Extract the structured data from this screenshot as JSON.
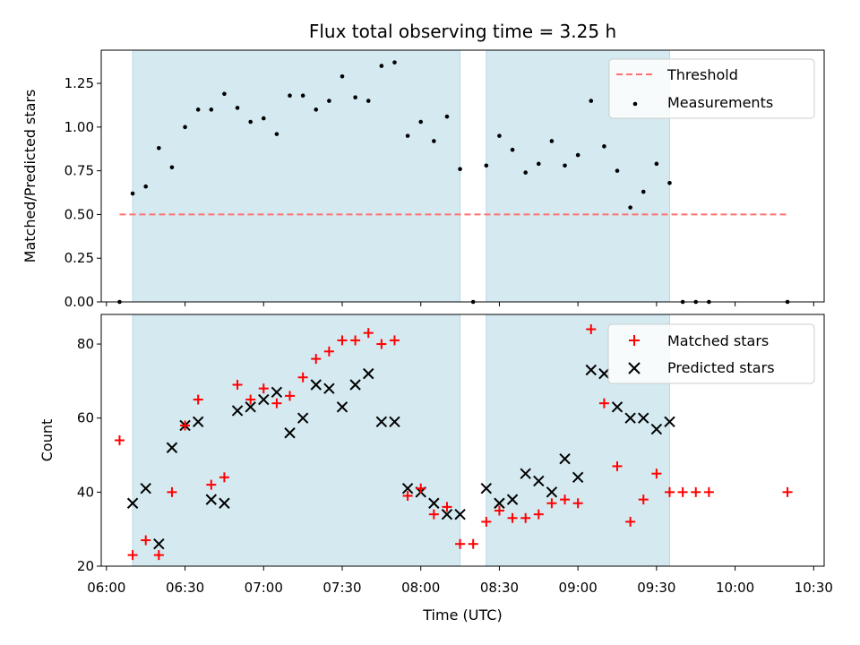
{
  "chart_data": [
    {
      "type": "scatter",
      "title": "Flux total observing time = 3.25 h",
      "xlabel": "",
      "ylabel": "Matched/Predicted stars",
      "ylim": [
        0,
        1.44
      ],
      "yticks": [
        0.0,
        0.25,
        0.5,
        0.75,
        1.0,
        1.25
      ],
      "ytick_labels": [
        "0.00",
        "0.25",
        "0.50",
        "0.75",
        "1.00",
        "1.25"
      ],
      "legend_position": "top-right",
      "shaded_spans": [
        [
          "06:10",
          "08:15"
        ],
        [
          "08:25",
          "09:35"
        ]
      ],
      "threshold": {
        "name": "Threshold",
        "y": 0.5,
        "x_range": [
          "06:05",
          "10:20"
        ],
        "color": "#ff7070"
      },
      "series": [
        {
          "name": "Measurements",
          "color": "#000000",
          "x": [
            "06:05",
            "06:10",
            "06:15",
            "06:20",
            "06:25",
            "06:30",
            "06:35",
            "06:40",
            "06:45",
            "06:50",
            "06:55",
            "07:00",
            "07:05",
            "07:10",
            "07:15",
            "07:20",
            "07:25",
            "07:30",
            "07:35",
            "07:40",
            "07:45",
            "07:50",
            "07:55",
            "08:00",
            "08:05",
            "08:10",
            "08:15",
            "08:20",
            "08:25",
            "08:30",
            "08:35",
            "08:40",
            "08:45",
            "08:50",
            "08:55",
            "09:00",
            "09:05",
            "09:10",
            "09:15",
            "09:20",
            "09:25",
            "09:30",
            "09:35",
            "09:40",
            "09:45",
            "09:50",
            "10:20"
          ],
          "y": [
            0.0,
            0.62,
            0.66,
            0.88,
            0.77,
            1.0,
            1.1,
            1.1,
            1.19,
            1.11,
            1.03,
            1.05,
            0.96,
            1.18,
            1.18,
            1.1,
            1.15,
            1.29,
            1.17,
            1.15,
            1.35,
            1.37,
            0.95,
            1.03,
            0.92,
            1.06,
            0.76,
            0.0,
            0.78,
            0.95,
            0.87,
            0.74,
            0.79,
            0.92,
            0.78,
            0.84,
            1.15,
            0.89,
            0.75,
            0.54,
            0.63,
            0.79,
            0.68,
            0.0,
            0.0,
            0.0,
            0.0
          ]
        }
      ]
    },
    {
      "type": "scatter",
      "xlabel": "Time (UTC)",
      "ylabel": "Count",
      "ylim": [
        20,
        88
      ],
      "yticks": [
        20,
        40,
        60,
        80
      ],
      "ytick_labels": [
        "20",
        "40",
        "60",
        "80"
      ],
      "xticks": [
        "06:00",
        "06:30",
        "07:00",
        "07:30",
        "08:00",
        "08:30",
        "09:00",
        "09:30",
        "10:00",
        "10:30"
      ],
      "xlim": [
        "05:58",
        "10:34"
      ],
      "legend_position": "top-right",
      "shaded_spans": [
        [
          "06:10",
          "08:15"
        ],
        [
          "08:25",
          "09:35"
        ]
      ],
      "series": [
        {
          "name": "Matched stars",
          "marker": "plus",
          "color": "#ff0000",
          "x": [
            "06:05",
            "06:10",
            "06:15",
            "06:20",
            "06:25",
            "06:30",
            "06:35",
            "06:40",
            "06:45",
            "06:50",
            "06:55",
            "07:00",
            "07:05",
            "07:10",
            "07:15",
            "07:20",
            "07:25",
            "07:30",
            "07:35",
            "07:40",
            "07:45",
            "07:50",
            "07:55",
            "08:00",
            "08:05",
            "08:10",
            "08:15",
            "08:20",
            "08:25",
            "08:30",
            "08:35",
            "08:40",
            "08:45",
            "08:50",
            "08:55",
            "09:00",
            "09:05",
            "09:10",
            "09:15",
            "09:20",
            "09:25",
            "09:30",
            "09:35",
            "09:40",
            "09:45",
            "09:50",
            "10:20"
          ],
          "y": [
            54,
            23,
            27,
            23,
            40,
            58,
            65,
            42,
            44,
            69,
            65,
            68,
            64,
            66,
            71,
            76,
            78,
            81,
            81,
            83,
            80,
            81,
            39,
            41,
            34,
            36,
            26,
            26,
            32,
            35,
            33,
            33,
            34,
            37,
            38,
            37,
            84,
            64,
            47,
            32,
            38,
            45,
            40,
            40,
            40,
            40,
            40
          ]
        },
        {
          "name": "Predicted stars",
          "marker": "x",
          "color": "#000000",
          "x": [
            "06:10",
            "06:15",
            "06:20",
            "06:25",
            "06:30",
            "06:35",
            "06:40",
            "06:45",
            "06:50",
            "06:55",
            "07:00",
            "07:05",
            "07:10",
            "07:15",
            "07:20",
            "07:25",
            "07:30",
            "07:35",
            "07:40",
            "07:45",
            "07:50",
            "07:55",
            "08:00",
            "08:05",
            "08:10",
            "08:15",
            "08:25",
            "08:30",
            "08:35",
            "08:40",
            "08:45",
            "08:50",
            "08:55",
            "09:00",
            "09:05",
            "09:10",
            "09:15",
            "09:20",
            "09:25",
            "09:30",
            "09:35"
          ],
          "y": [
            37,
            41,
            26,
            52,
            58,
            59,
            38,
            37,
            62,
            63,
            65,
            67,
            56,
            60,
            69,
            68,
            63,
            69,
            72,
            59,
            59,
            41,
            40,
            37,
            34,
            34,
            41,
            37,
            38,
            45,
            43,
            40,
            49,
            44,
            73,
            72,
            63,
            60,
            60,
            57,
            59
          ]
        }
      ]
    }
  ]
}
